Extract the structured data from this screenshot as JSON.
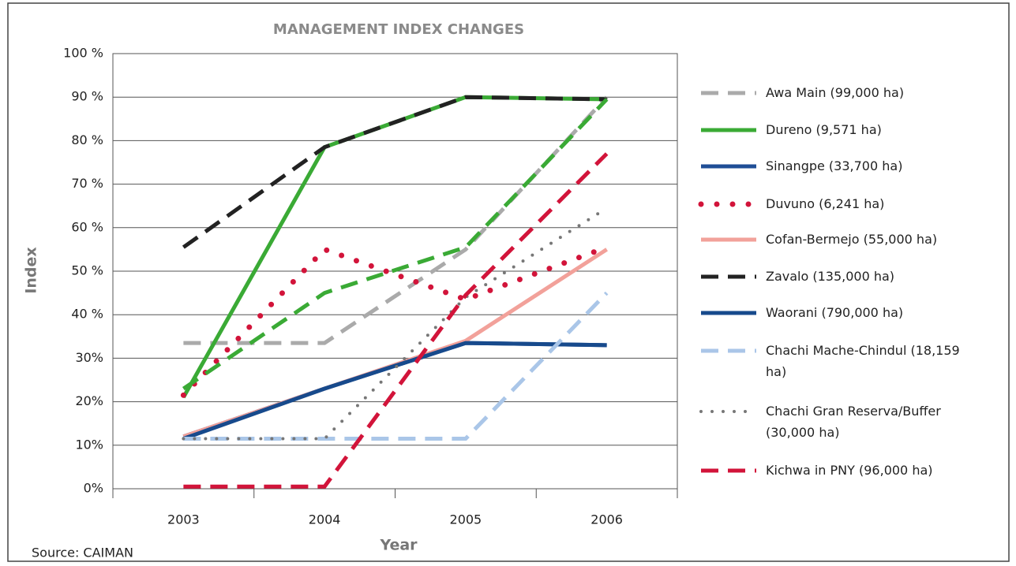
{
  "chart_data": {
    "type": "line",
    "title": "MANAGEMENT INDEX CHANGES",
    "x_label": "Year",
    "y_label": "Index",
    "source": "Source: CAIMAN",
    "categories": [
      "2003",
      "2004",
      "2005",
      "2006"
    ],
    "ylim": [
      0,
      100
    ],
    "yticks": [
      {
        "value": 0,
        "label": "0%"
      },
      {
        "value": 10,
        "label": "10%"
      },
      {
        "value": 20,
        "label": "20%"
      },
      {
        "value": 30,
        "label": "30%"
      },
      {
        "value": 40,
        "label": "40 %"
      },
      {
        "value": 50,
        "label": "50 %"
      },
      {
        "value": 60,
        "label": "60 %"
      },
      {
        "value": 70,
        "label": "70 %"
      },
      {
        "value": 80,
        "label": "80 %"
      },
      {
        "value": 90,
        "label": "90 %"
      },
      {
        "value": 100,
        "label": "100 %"
      }
    ],
    "grid": true,
    "legend": "right",
    "series": [
      {
        "name": "Awa Main (99,000 ha)",
        "color": "#aaaaaa",
        "dash": "dashed",
        "values": [
          33.5,
          33.5,
          55,
          90
        ]
      },
      {
        "name": "Dureno (9,571 ha)",
        "color": "#3aaa35",
        "dash": "solid",
        "values": [
          21,
          78.5,
          90,
          89.5
        ]
      },
      {
        "name": "Sinangpe (33,700 ha)",
        "color": "#1f4e96",
        "dash": "solid",
        "values": [
          12,
          23,
          33.5,
          33
        ]
      },
      {
        "name": "Duvuno (6,241 ha)",
        "color": "#d2143a",
        "dash": "dotted",
        "values": [
          21.5,
          55,
          43.5,
          55.5
        ]
      },
      {
        "name": "Cofan-Bermejo (55,000 ha)",
        "color": "#f2a19a",
        "dash": "solid",
        "values": [
          12,
          23,
          34,
          55
        ]
      },
      {
        "name": "Zavalo (135,000 ha)",
        "color": "#222222",
        "dash": "dashed",
        "values": [
          55.5,
          78.5,
          90,
          89.5
        ]
      },
      {
        "name": "Waorani (790,000 ha)",
        "color": "#174a8c",
        "dash": "solid",
        "values": [
          11.5,
          23,
          33.5,
          33
        ]
      },
      {
        "name": "Chachi Mache-Chindul (18,159 ha)",
        "color": "#aac6e8",
        "dash": "dashed",
        "values": [
          11.5,
          11.5,
          11.5,
          45
        ]
      },
      {
        "name": "Chachi Gran Reserva/Buffer (30,000 ha)",
        "color": "#777777",
        "dash": "dotted-small",
        "values": [
          11.5,
          11.5,
          44,
          64.5
        ]
      },
      {
        "name": "Kichwa in PNY (96,000 ha)",
        "color": "#d2143a",
        "dash": "dashed",
        "values": [
          0.5,
          0.5,
          44.5,
          77
        ]
      },
      {
        "color": "#3aaa35",
        "dash": "dashed",
        "values": [
          23,
          45,
          55.5,
          89.5
        ]
      }
    ]
  }
}
